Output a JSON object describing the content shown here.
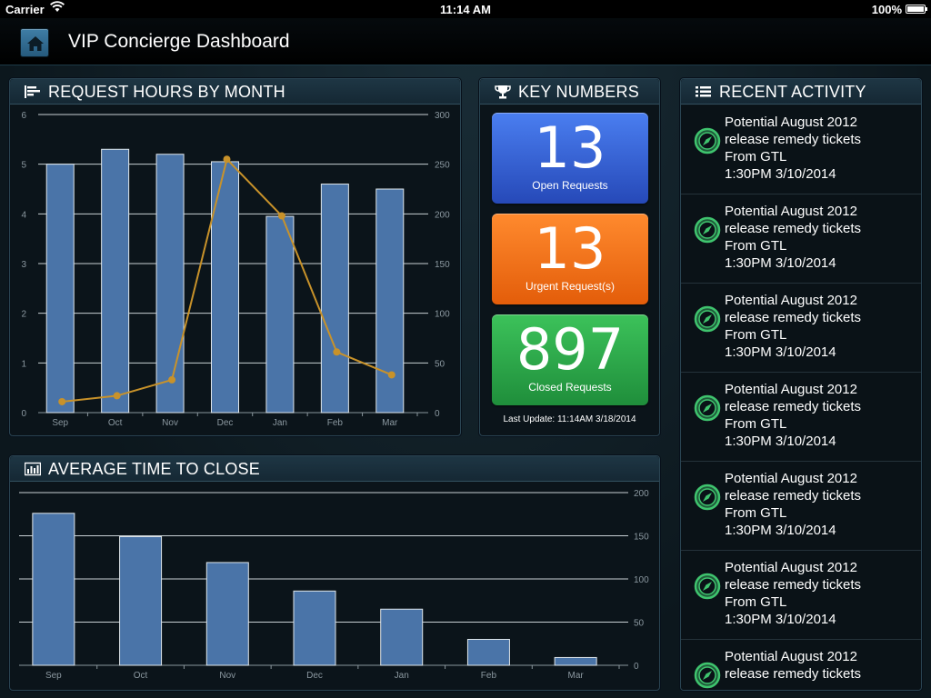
{
  "status_bar": {
    "carrier": "Carrier",
    "time": "11:14 AM",
    "battery": "100%"
  },
  "nav": {
    "title": "VIP Concierge Dashboard",
    "home_icon": "home-icon"
  },
  "hours_panel": {
    "title": "REQUEST HOURS BY MONTH",
    "icon": "bar-lines-icon"
  },
  "key_numbers": {
    "title": "KEY NUMBERS",
    "icon": "trophy-icon",
    "open_value": "13",
    "open_label": "Open Requests",
    "urgent_value": "13",
    "urgent_label": "Urgent Request(s)",
    "closed_value": "897",
    "closed_label": "Closed Requests",
    "last_update": "Last Update: 11:14AM 3/18/2014"
  },
  "avg_panel": {
    "title": "AVERAGE TIME TO CLOSE",
    "icon": "bar-chart-icon"
  },
  "recent": {
    "title": "RECENT ACTIVITY",
    "icon": "list-icon",
    "items": [
      {
        "line1": "Potential August 2012",
        "line2": "release remedy tickets",
        "line3": "From GTL",
        "line4": "1:30PM 3/10/2014"
      },
      {
        "line1": "Potential August 2012",
        "line2": "release remedy tickets",
        "line3": "From GTL",
        "line4": "1:30PM 3/10/2014"
      },
      {
        "line1": "Potential August 2012",
        "line2": "release remedy tickets",
        "line3": "From GTL",
        "line4": "1:30PM 3/10/2014"
      },
      {
        "line1": "Potential August 2012",
        "line2": "release remedy tickets",
        "line3": "From GTL",
        "line4": "1:30PM 3/10/2014"
      },
      {
        "line1": "Potential August 2012",
        "line2": "release remedy tickets",
        "line3": "From GTL",
        "line4": "1:30PM 3/10/2014"
      },
      {
        "line1": "Potential August 2012",
        "line2": "release remedy tickets",
        "line3": "From GTL",
        "line4": "1:30PM 3/10/2014"
      },
      {
        "line1": "Potential August 2012",
        "line2": "release remedy tickets",
        "line3": "",
        "line4": ""
      }
    ]
  },
  "chart_data": [
    {
      "type": "bar+line",
      "title": "REQUEST HOURS BY MONTH",
      "categories": [
        "Sep",
        "Oct",
        "Nov",
        "Dec",
        "Jan",
        "Feb",
        "Mar"
      ],
      "series": [
        {
          "type": "bar",
          "axis": "left",
          "values": [
            5.0,
            5.3,
            5.2,
            5.05,
            3.95,
            4.6,
            4.5
          ],
          "color": "#4a74a8"
        },
        {
          "type": "line",
          "axis": "right",
          "values": [
            11,
            17,
            33,
            255,
            198,
            61,
            38
          ],
          "color": "#c8922a"
        }
      ],
      "y_left": {
        "min": 0,
        "max": 6,
        "ticks": [
          0,
          1,
          2,
          3,
          4,
          5,
          6
        ]
      },
      "y_right": {
        "min": 0,
        "max": 300,
        "ticks": [
          0,
          50,
          100,
          150,
          200,
          250,
          300
        ]
      },
      "grid": true
    },
    {
      "type": "bar",
      "title": "AVERAGE TIME TO CLOSE",
      "categories": [
        "Sep",
        "Oct",
        "Nov",
        "Dec",
        "Jan",
        "Feb",
        "Mar"
      ],
      "values": [
        176,
        149,
        119,
        86,
        65,
        30,
        9
      ],
      "color": "#4a74a8",
      "y_right": {
        "min": 0,
        "max": 200,
        "ticks": [
          0,
          50,
          100,
          150,
          200
        ]
      },
      "grid": true
    }
  ]
}
